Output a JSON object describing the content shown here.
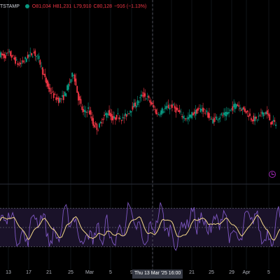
{
  "legend": {
    "symbol": "TSTAMP",
    "open": "O81,034",
    "high": "H81,231",
    "low": "L79,910",
    "close": "C80,128",
    "change": "−916 (−1.13%)"
  },
  "x_axis": {
    "ticks": [
      "13",
      "17",
      "21",
      "25",
      "Mar",
      "5",
      "9",
      "13",
      "17",
      "21",
      "25",
      "29",
      "Apr",
      "5"
    ],
    "crosshair_label": "Thu 13 Mar '25   16:00"
  },
  "colors": {
    "up": "#089981",
    "down": "#f23645",
    "rsi_line": "#7e57c2",
    "rsi_ma": "#f5d98b",
    "rsi_band": "#1a1229",
    "background": "#000000"
  },
  "icons": {
    "replay": "clock-icon"
  },
  "chart_data": {
    "type": "candlestick",
    "price": {
      "trend": [
        96000,
        95500,
        96200,
        94800,
        93500,
        94500,
        95800,
        96300,
        95000,
        91000,
        88000,
        86500,
        85500,
        86200,
        89000,
        91800,
        86000,
        82500,
        83500,
        80000,
        79000,
        81500,
        82800,
        81000,
        82000,
        81200,
        82500,
        84000,
        85000,
        86800,
        86000,
        84200,
        82300,
        83200,
        83800,
        84200,
        83000,
        82000,
        81200,
        82300,
        83000,
        83600,
        82500,
        80800,
        81500,
        82000,
        82200,
        83500,
        84700,
        83600,
        83000,
        81400,
        81000,
        82400,
        82800,
        80500,
        80128
      ]
    },
    "rsi": {
      "levels": [
        70,
        50,
        30
      ],
      "ylim": [
        10,
        90
      ]
    }
  }
}
